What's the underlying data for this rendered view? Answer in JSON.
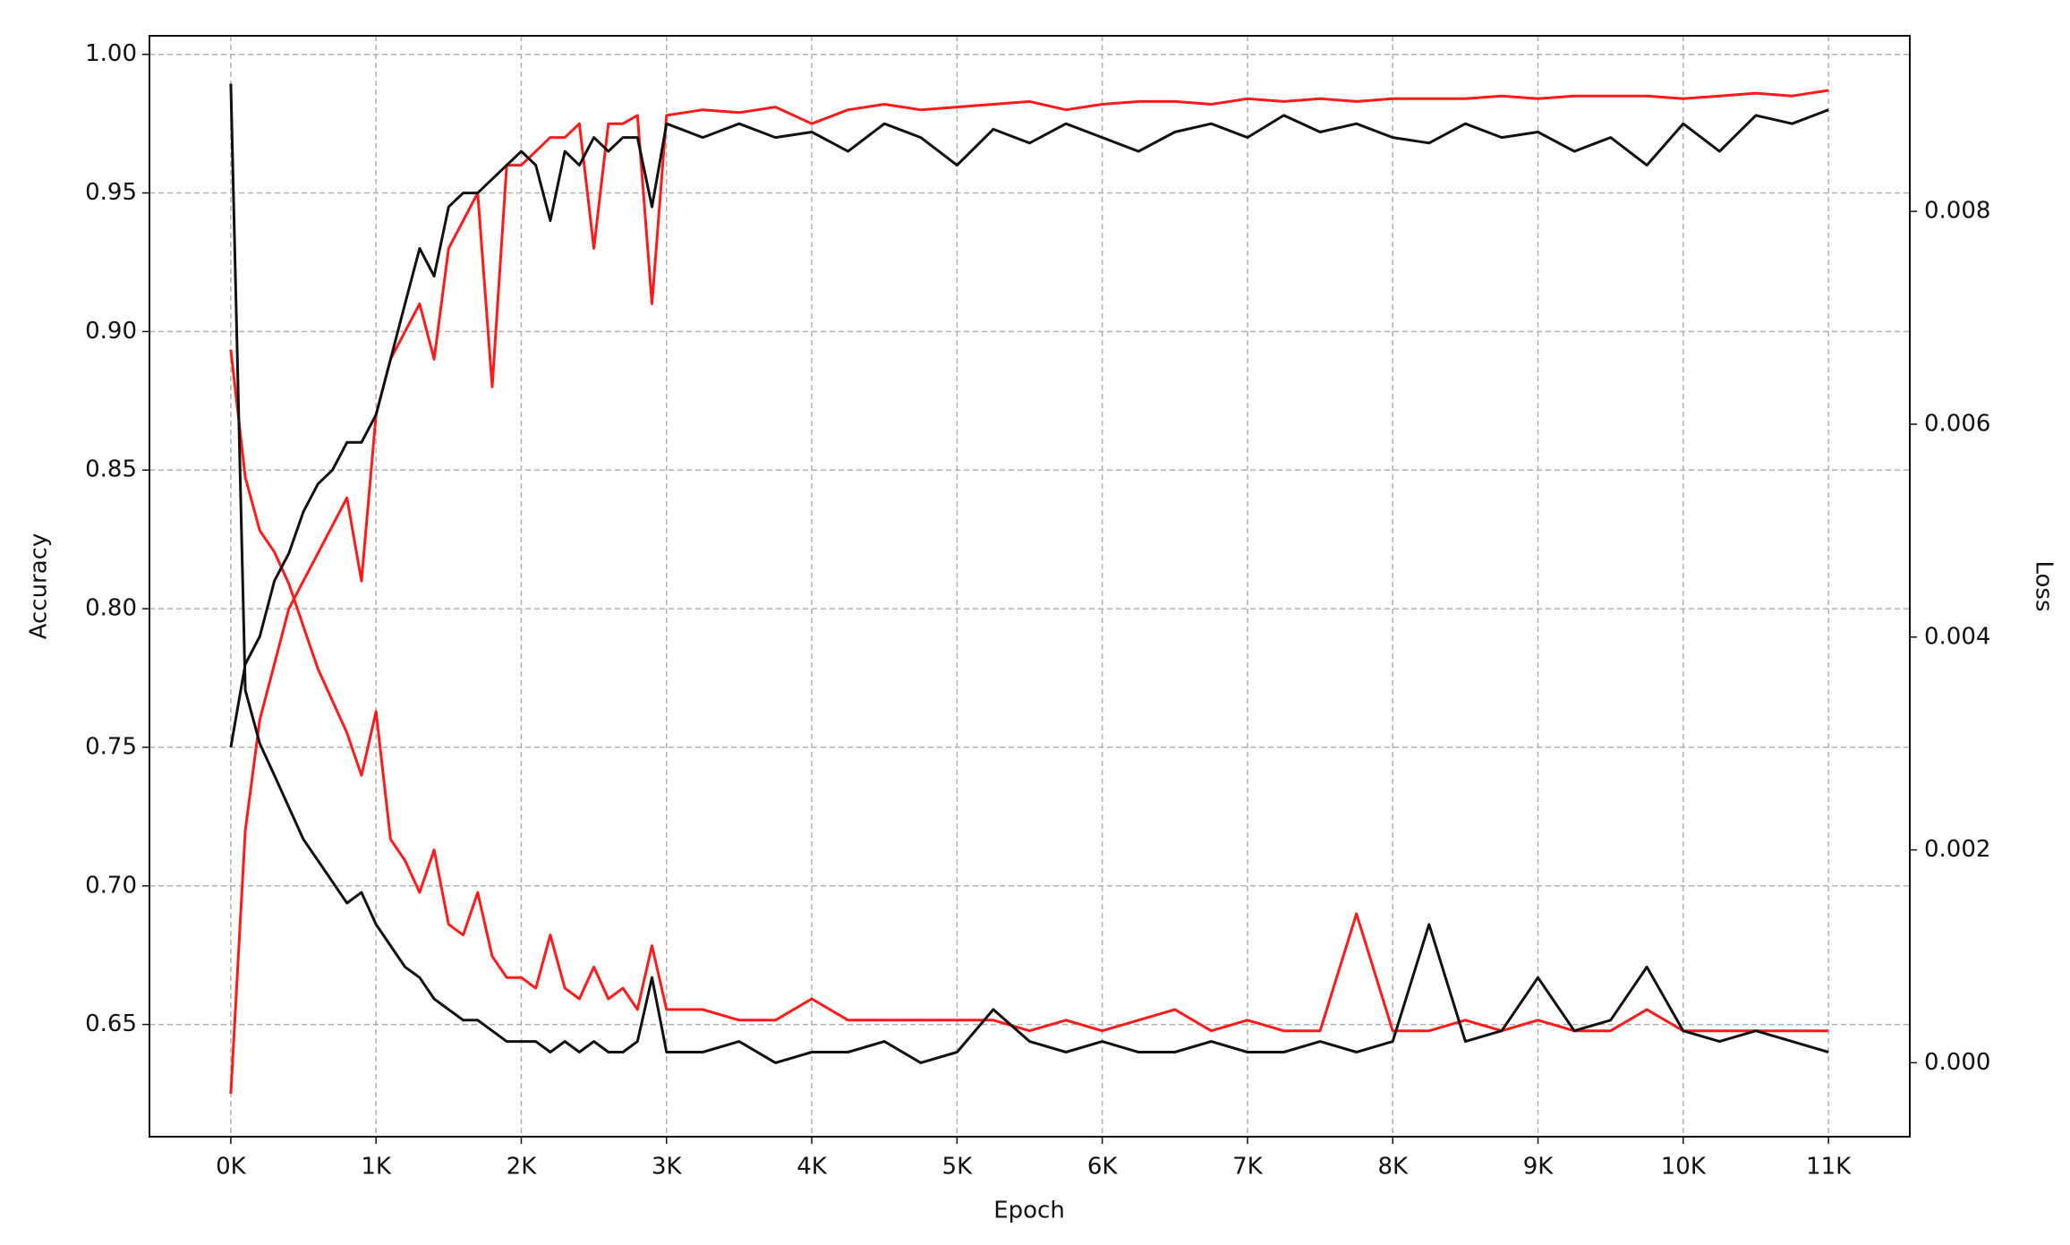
{
  "chart_data": {
    "type": "line",
    "xlabel": "Epoch",
    "ylabel": "Accuracy",
    "y2label": "Loss",
    "x": [
      0,
      100,
      200,
      300,
      400,
      500,
      600,
      700,
      800,
      900,
      1000,
      1100,
      1200,
      1300,
      1400,
      1500,
      1600,
      1700,
      1800,
      1900,
      2000,
      2100,
      2200,
      2300,
      2400,
      2500,
      2600,
      2700,
      2800,
      2900,
      3000,
      3250,
      3500,
      3750,
      4000,
      4250,
      4500,
      4750,
      5000,
      5250,
      5500,
      5750,
      6000,
      6250,
      6500,
      6750,
      7000,
      7250,
      7500,
      7750,
      8000,
      8250,
      8500,
      8750,
      9000,
      9250,
      9500,
      9750,
      10000,
      10250,
      10500,
      10750,
      11000
    ],
    "series": [
      {
        "color": "#ff1a1a",
        "axis": "y2",
        "values": [
          0.0067,
          0.0055,
          0.005,
          0.0048,
          0.0045,
          0.0041,
          0.0037,
          0.0034,
          0.0031,
          0.0027,
          0.0033,
          0.0021,
          0.0019,
          0.0016,
          0.002,
          0.0013,
          0.0012,
          0.0016,
          0.001,
          0.0008,
          0.0008,
          0.0007,
          0.0012,
          0.0007,
          0.0006,
          0.0009,
          0.0006,
          0.0007,
          0.0005,
          0.0011,
          0.0005,
          0.0005,
          0.0004,
          0.0004,
          0.0006,
          0.0004,
          0.0004,
          0.0004,
          0.0004,
          0.0004,
          0.0003,
          0.0004,
          0.0003,
          0.0004,
          0.0005,
          0.0003,
          0.0004,
          0.0003,
          0.0003,
          0.0014,
          0.0003,
          0.0003,
          0.0004,
          0.0003,
          0.0004,
          0.0003,
          0.0003,
          0.0005,
          0.0003,
          0.0003,
          0.0003,
          0.0003,
          0.0003
        ]
      },
      {
        "color": "#ff1a1a",
        "values": [
          0.625,
          0.72,
          0.76,
          0.78,
          0.8,
          0.81,
          0.82,
          0.83,
          0.84,
          0.81,
          0.87,
          0.89,
          0.9,
          0.91,
          0.89,
          0.93,
          0.94,
          0.95,
          0.88,
          0.96,
          0.96,
          0.965,
          0.97,
          0.97,
          0.975,
          0.93,
          0.975,
          0.975,
          0.978,
          0.91,
          0.978,
          0.98,
          0.979,
          0.981,
          0.975,
          0.98,
          0.982,
          0.98,
          0.981,
          0.982,
          0.983,
          0.98,
          0.982,
          0.983,
          0.983,
          0.982,
          0.984,
          0.983,
          0.984,
          0.983,
          0.984,
          0.984,
          0.984,
          0.985,
          0.984,
          0.985,
          0.985,
          0.985,
          0.984,
          0.985,
          0.986,
          0.985,
          0.987
        ]
      },
      {
        "color": "#111111",
        "axis": "y2",
        "values": [
          0.0092,
          0.0035,
          0.003,
          0.0027,
          0.0024,
          0.0021,
          0.0019,
          0.0017,
          0.0015,
          0.0016,
          0.0013,
          0.0011,
          0.0009,
          0.0008,
          0.0006,
          0.0005,
          0.0004,
          0.0004,
          0.0003,
          0.0002,
          0.0002,
          0.0002,
          0.0001,
          0.0002,
          0.0001,
          0.0002,
          0.0001,
          0.0001,
          0.0002,
          0.0008,
          0.0001,
          0.0001,
          0.0002,
          0,
          0.0001,
          0.0001,
          0.0002,
          0,
          0.0001,
          0.0005,
          0.0002,
          0.0001,
          0.0002,
          0.0001,
          0.0001,
          0.0002,
          0.0001,
          0.0001,
          0.0002,
          0.0001,
          0.0002,
          0.0013,
          0.0002,
          0.0003,
          0.0008,
          0.0003,
          0.0004,
          0.0009,
          0.0003,
          0.0002,
          0.0003,
          0.0002,
          0.0001
        ]
      },
      {
        "color": "#111111",
        "values": [
          0.75,
          0.78,
          0.79,
          0.81,
          0.82,
          0.835,
          0.845,
          0.85,
          0.86,
          0.86,
          0.87,
          0.89,
          0.91,
          0.93,
          0.92,
          0.945,
          0.95,
          0.95,
          0.955,
          0.96,
          0.965,
          0.96,
          0.94,
          0.965,
          0.96,
          0.97,
          0.965,
          0.97,
          0.97,
          0.945,
          0.975,
          0.97,
          0.975,
          0.97,
          0.972,
          0.965,
          0.975,
          0.97,
          0.96,
          0.973,
          0.968,
          0.975,
          0.97,
          0.965,
          0.972,
          0.975,
          0.97,
          0.978,
          0.972,
          0.975,
          0.97,
          0.968,
          0.975,
          0.97,
          0.972,
          0.965,
          0.97,
          0.96,
          0.975,
          0.965,
          0.978,
          0.975,
          0.98
        ]
      }
    ],
    "xlim": [
      -560,
      11560
    ],
    "xticks": [
      {
        "value": 0,
        "label": "0K"
      },
      {
        "value": 1000,
        "label": "1K"
      },
      {
        "value": 2000,
        "label": "2K"
      },
      {
        "value": 3000,
        "label": "3K"
      },
      {
        "value": 4000,
        "label": "4K"
      },
      {
        "value": 5000,
        "label": "5K"
      },
      {
        "value": 6000,
        "label": "6K"
      },
      {
        "value": 7000,
        "label": "7K"
      },
      {
        "value": 8000,
        "label": "8K"
      },
      {
        "value": 9000,
        "label": "9K"
      },
      {
        "value": 10000,
        "label": "10K"
      },
      {
        "value": 11000,
        "label": "11K"
      }
    ],
    "ylim": [
      0.6095,
      1.0067
    ],
    "yticks": [
      0.65,
      {
        "value": 0.7,
        "label": "0.70"
      },
      0.75,
      {
        "value": 0.8,
        "label": "0.80"
      },
      0.85,
      {
        "value": 0.9,
        "label": "0.90"
      },
      0.95,
      {
        "value": 1,
        "label": "1.00"
      }
    ],
    "y2lim": [
      -0.000695,
      0.00965
    ],
    "y2ticks": [
      {
        "value": 0,
        "label": "0.000"
      },
      0.002,
      0.004,
      0.006,
      0.008
    ],
    "grid": true
  }
}
